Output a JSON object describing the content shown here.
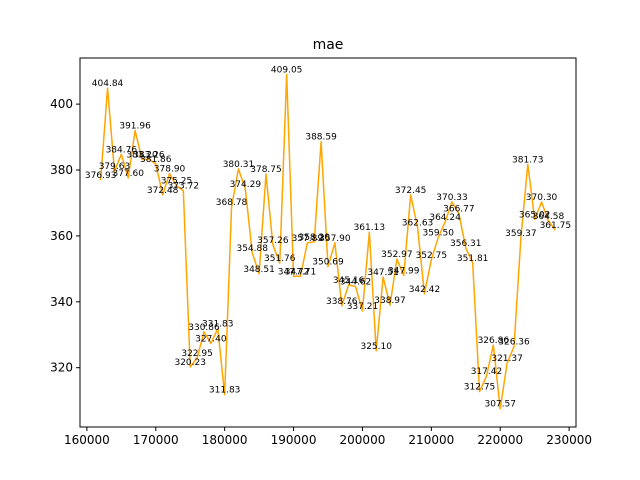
{
  "chart_data": {
    "type": "line",
    "title": "mae",
    "xlabel": "",
    "ylabel": "",
    "xlim": [
      159000,
      231000
    ],
    "ylim": [
      302,
      414
    ],
    "grid": false,
    "legend": "none",
    "color": "#ffa500",
    "x_ticks": [
      160000,
      170000,
      180000,
      190000,
      200000,
      210000,
      220000,
      230000
    ],
    "y_ticks": [
      320,
      340,
      360,
      380,
      400
    ],
    "series": [
      {
        "name": "",
        "x": [
          162000,
          163000,
          164000,
          165000,
          166000,
          167000,
          168000,
          169000,
          170000,
          171000,
          172000,
          173000,
          174000,
          175000,
          176000,
          177000,
          178000,
          179000,
          180000,
          181000,
          182000,
          183000,
          184000,
          185000,
          186000,
          187000,
          188000,
          189000,
          190000,
          191000,
          192000,
          193000,
          194000,
          195000,
          196000,
          197000,
          198000,
          199000,
          200000,
          201000,
          202000,
          203000,
          204000,
          205000,
          206000,
          207000,
          208000,
          209000,
          210000,
          211000,
          212000,
          213000,
          214000,
          215000,
          216000,
          217000,
          218000,
          219000,
          220000,
          221000,
          222000,
          223000,
          224000,
          225000,
          226000,
          227000,
          228000
        ],
        "values": [
          376.93,
          404.84,
          379.63,
          384.76,
          377.6,
          391.96,
          383.2,
          383.26,
          381.86,
          372.48,
          378.9,
          375.25,
          373.72,
          320.23,
          322.95,
          330.86,
          327.4,
          331.83,
          311.83,
          368.78,
          380.31,
          374.29,
          354.88,
          348.51,
          378.75,
          357.26,
          351.76,
          409.05,
          347.72,
          347.71,
          357.89,
          358.2,
          388.59,
          350.69,
          357.9,
          338.76,
          345.16,
          344.62,
          337.21,
          361.13,
          325.1,
          347.51,
          338.97,
          352.97,
          347.99,
          372.45,
          362.63,
          342.42,
          352.75,
          359.5,
          364.24,
          370.33,
          366.77,
          356.31,
          351.81,
          312.75,
          317.42,
          326.86,
          307.57,
          321.37,
          326.36,
          359.37,
          381.73,
          365.02,
          370.3,
          364.58,
          361.75
        ],
        "labels": [
          "376.93",
          "404.84",
          "379.63",
          "384.76",
          "377.60",
          "391.96",
          "383.20",
          "383.26",
          "381.86",
          "372.48",
          "378.90",
          "375.25",
          "373.72",
          "320.23",
          "322.95",
          "330.86",
          "327.40",
          "331.83",
          "311.83",
          "368.78",
          "380.31",
          "374.29",
          "354.88",
          "348.51",
          "378.75",
          "357.26",
          "351.76",
          "409.05",
          "347.72",
          "347.71",
          "357.89",
          "358.20",
          "388.59",
          "350.69",
          "357.90",
          "338.76",
          "345.16",
          "344.62",
          "337.21",
          "361.13",
          "325.10",
          "347.51",
          "338.97",
          "352.97",
          "347.99",
          "372.45",
          "362.63",
          "342.42",
          "352.75",
          "359.50",
          "364.24",
          "370.33",
          "366.77",
          "356.31",
          "351.81",
          "312.75",
          "317.42",
          "326.86",
          "307.57",
          "321.37",
          "326.36",
          "359.37",
          "381.73",
          "365.02",
          "370.30",
          "364.58",
          "361.75"
        ]
      }
    ]
  }
}
